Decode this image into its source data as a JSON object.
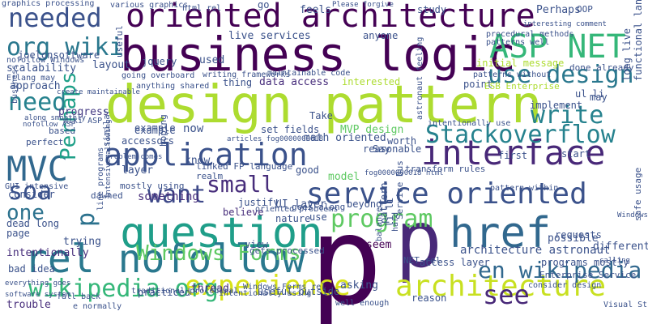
{
  "words": [
    {
      "text": "p",
      "color": "#440154"
    },
    {
      "text": "design pattern",
      "color": "#addc30"
    },
    {
      "text": "business logic",
      "color": "#440154"
    },
    {
      "text": "oriented architecture",
      "color": "#440154"
    },
    {
      "text": "question",
      "color": "#1f9e89"
    },
    {
      "text": "service oriented",
      "color": "#3b528b"
    },
    {
      "text": "href",
      "color": "#31688e"
    },
    {
      "text": "p",
      "color": "#482878"
    },
    {
      "text": "rel nofollow",
      "color": "#2a788e"
    },
    {
      "text": "interface",
      "color": "#482878"
    },
    {
      "text": "Stackoverflow",
      "color": "#26828e"
    },
    {
      "text": "application",
      "color": "#3b528b"
    },
    {
      "text": "architecture",
      "color": "#c8e020"
    },
    {
      "text": "experience",
      "color": "#d8e219"
    },
    {
      "text": "wikipedia org",
      "color": "#35b779"
    },
    {
      "text": "MVC",
      "color": "#31688e"
    },
    {
      "text": "ASP NET",
      "color": "#35b779"
    },
    {
      "text": "use design",
      "color": "#2a788e"
    },
    {
      "text": "write",
      "color": "#26828e"
    },
    {
      "text": "program",
      "color": "#5ec962"
    },
    {
      "text": "Windows Forms",
      "color": "#5ec962"
    },
    {
      "text": "want",
      "color": "#3e4989"
    },
    {
      "text": "small",
      "color": "#472d7b"
    },
    {
      "text": "soa",
      "color": "#3b528b"
    },
    {
      "text": "needed",
      "color": "#3b528b"
    },
    {
      "text": "org wiki",
      "color": "#2a788e"
    },
    {
      "text": "need",
      "color": "#26828e"
    },
    {
      "text": "en wikipedia",
      "color": "#31688e"
    },
    {
      "text": "see",
      "color": "#482878"
    },
    {
      "text": "Perhaps",
      "color": "#1fa088"
    },
    {
      "text": "p",
      "color": "#2c728e"
    },
    {
      "text": "architecture astronaut",
      "color": "#3b528b"
    },
    {
      "text": "one",
      "color": "#2c728e"
    },
    {
      "text": "live services",
      "color": "#3b528b"
    },
    {
      "text": "data access",
      "color": "#472d7b"
    },
    {
      "text": "scalability",
      "color": "#3b528b"
    },
    {
      "text": "approach",
      "color": "#3b528b"
    },
    {
      "text": "joelonsoftware",
      "color": "#3b528b"
    },
    {
      "text": "layout",
      "color": "#3b528b"
    },
    {
      "text": "progress",
      "color": "#443a83"
    },
    {
      "text": "MVP design",
      "color": "#5ec962"
    },
    {
      "text": "math oriented",
      "color": "#3b528b"
    },
    {
      "text": "set fields",
      "color": "#3b528b"
    },
    {
      "text": "example",
      "color": "#3b528b"
    },
    {
      "text": "now",
      "color": "#3b528b"
    },
    {
      "text": "accessors",
      "color": "#3b528b"
    },
    {
      "text": "layer",
      "color": "#3b528b"
    },
    {
      "text": "know",
      "color": "#3b528b"
    },
    {
      "text": "linked FP language",
      "color": "#3b528b"
    },
    {
      "text": "realm",
      "color": "#3b528b"
    },
    {
      "text": "good",
      "color": "#3b528b"
    },
    {
      "text": "model",
      "color": "#5ec962"
    },
    {
      "text": "something",
      "color": "#472d7b"
    },
    {
      "text": "believe",
      "color": "#472d7b"
    },
    {
      "text": "nature",
      "color": "#3b528b"
    },
    {
      "text": "use",
      "color": "#3b528b"
    },
    {
      "text": "UI layer",
      "color": "#3b528b"
    },
    {
      "text": "beyond",
      "color": "#3b528b"
    },
    {
      "text": "seem",
      "color": "#440154"
    },
    {
      "text": "trying",
      "color": "#3b528b"
    },
    {
      "text": "intentionally",
      "color": "#472d7b"
    },
    {
      "text": "trouble",
      "color": "#472d7b"
    },
    {
      "text": "thread",
      "color": "#472d7b"
    },
    {
      "text": "view",
      "color": "#3b528b"
    },
    {
      "text": "asking",
      "color": "#3b528b"
    },
    {
      "text": "reason",
      "color": "#3b528b"
    },
    {
      "text": "access layer",
      "color": "#3b528b"
    },
    {
      "text": "possible",
      "color": "#3b528b"
    },
    {
      "text": "different",
      "color": "#3b528b"
    },
    {
      "text": "programs mostly",
      "color": "#3b528b"
    },
    {
      "text": "Enterprise Service",
      "color": "#3b528b"
    },
    {
      "text": "practiced",
      "color": "#3b528b"
    },
    {
      "text": "gets processed",
      "color": "#3b528b"
    },
    {
      "text": "useful outside",
      "color": "#3b528b"
    },
    {
      "text": "go",
      "color": "#3b528b"
    },
    {
      "text": "feels",
      "color": "#3b528b"
    },
    {
      "text": "study",
      "color": "#3b528b"
    },
    {
      "text": "OOP",
      "color": "#3b528b"
    },
    {
      "text": "interested",
      "color": "#addc30"
    },
    {
      "text": "initial message",
      "color": "#addc30"
    },
    {
      "text": "implement",
      "color": "#3b528b"
    },
    {
      "text": "may",
      "color": "#3b528b"
    },
    {
      "text": "ul li",
      "color": "#3b528b"
    },
    {
      "text": "point",
      "color": "#3b528b"
    },
    {
      "text": "ESB Enterprise",
      "color": "#addc30"
    },
    {
      "text": "worth",
      "color": "#3b528b"
    },
    {
      "text": "Take",
      "color": "#3b528b"
    },
    {
      "text": "Say",
      "color": "#3b528b"
    },
    {
      "text": "reasonable",
      "color": "#3b528b"
    },
    {
      "text": "first",
      "color": "#3b528b"
    },
    {
      "text": "start",
      "color": "#3b528b"
    },
    {
      "text": "pattern within",
      "color": "#3b528b"
    },
    {
      "text": "requests",
      "color": "#3b528b"
    },
    {
      "text": "bad idea",
      "color": "#3b528b"
    },
    {
      "text": "dead long",
      "color": "#3b528b"
    },
    {
      "text": "page",
      "color": "#3b528b"
    },
    {
      "text": "consider",
      "color": "#3b528b"
    },
    {
      "text": "GUI intensive",
      "color": "#3b528b"
    },
    {
      "text": "nofollow ASP",
      "color": "#3b528b"
    },
    {
      "text": "perfect",
      "color": "#3b528b"
    },
    {
      "text": "based",
      "color": "#3b528b"
    },
    {
      "text": "wiki ASP",
      "color": "#3b528b"
    },
    {
      "text": "nofollow Windows",
      "color": "#3b528b"
    },
    {
      "text": "Erlang may",
      "color": "#3b528b"
    },
    {
      "text": "jquery",
      "color": "#3b528b"
    },
    {
      "text": "used",
      "color": "#3b528b"
    },
    {
      "text": "thing",
      "color": "#3b528b"
    },
    {
      "text": "anything shared",
      "color": "#3b528b"
    },
    {
      "text": "graphics processing",
      "color": "#3b528b"
    },
    {
      "text": "various graphics",
      "color": "#3b528b"
    },
    {
      "text": "done already",
      "color": "#3b528b"
    },
    {
      "text": "transform rules",
      "color": "#3b528b"
    },
    {
      "text": "mostly using",
      "color": "#3b528b"
    },
    {
      "text": "goes along",
      "color": "#3b528b"
    },
    {
      "text": "oriented problems",
      "color": "#3b528b"
    },
    {
      "text": "intentionally using",
      "color": "#3b528b"
    },
    {
      "text": "Visual Studio",
      "color": "#3b528b"
    },
    {
      "text": "fall back",
      "color": "#3b528b"
    },
    {
      "text": "e normally",
      "color": "#3b528b"
    },
    {
      "text": "along smoothly",
      "color": "#3b528b"
    },
    {
      "text": "everything goes",
      "color": "#3b528b"
    },
    {
      "text": "software system",
      "color": "#3b528b"
    },
    {
      "text": "justify",
      "color": "#3b528b"
    },
    {
      "text": "pattern",
      "color": "#3b528b"
    },
    {
      "text": "li li",
      "color": "#3b528b"
    },
    {
      "text": "Windows_Forms rel",
      "color": "#3b528b"
    },
    {
      "text": "traditional procedural",
      "color": "#3b528b"
    },
    {
      "text": "NET rel",
      "color": "#3b528b"
    },
    {
      "text": "consider design",
      "color": "#3b528b"
    },
    {
      "text": "well enough",
      "color": "#3b528b"
    },
    {
      "text": "anyone",
      "color": "#3b528b"
    },
    {
      "text": "Perhaps",
      "color": "#3b528b"
    },
    {
      "text": "procedural methods",
      "color": "#3b528b"
    },
    {
      "text": "patterns well",
      "color": "#3b528b"
    },
    {
      "text": "patterns without",
      "color": "#3b528b"
    },
    {
      "text": "create maintainable",
      "color": "#3b528b"
    },
    {
      "text": "maintainable code",
      "color": "#3b528b"
    },
    {
      "text": "writing frameworks",
      "color": "#3b528b"
    },
    {
      "text": "going overboard",
      "color": "#3b528b"
    },
    {
      "text": "intentionally use",
      "color": "#3b528b"
    },
    {
      "text": "example",
      "color": "#3b528b"
    },
    {
      "text": "problem comes",
      "color": "#3b528b"
    },
    {
      "text": "articles fog0000000018",
      "color": "#3b528b"
    },
    {
      "text": "html rel",
      "color": "#3b528b"
    },
    {
      "text": "Please forgive",
      "color": "#3b528b"
    },
    {
      "text": "long live",
      "color": "#3b528b"
    },
    {
      "text": "fog0000000018 html",
      "color": "#3b528b"
    },
    {
      "text": "Windows Forms",
      "color": "#3b528b"
    },
    {
      "text": "functional language",
      "color": "#3b528b"
    },
    {
      "text": "safe usage",
      "color": "#3b528b"
    },
    {
      "text": "dawned",
      "color": "#3b528b"
    },
    {
      "text": "useful",
      "color": "#3b528b"
    },
    {
      "text": "similar",
      "color": "#3b528b"
    },
    {
      "text": "hoping",
      "color": "#3b528b"
    },
    {
      "text": "business",
      "color": "#3b528b"
    },
    {
      "text": "line programs",
      "color": "#3b528b"
    },
    {
      "text": "intensive allowing",
      "color": "#3b528b"
    },
    {
      "text": "balance",
      "color": "#3b528b"
    },
    {
      "text": "hard",
      "color": "#3b528b"
    },
    {
      "text": "Service Bus",
      "color": "#3b528b"
    },
    {
      "text": "astronaut feeling",
      "color": "#3b528b"
    },
    {
      "text": "interesting comment",
      "color": "#3b528b"
    },
    {
      "text": "calling",
      "color": "#3b528b"
    }
  ]
}
